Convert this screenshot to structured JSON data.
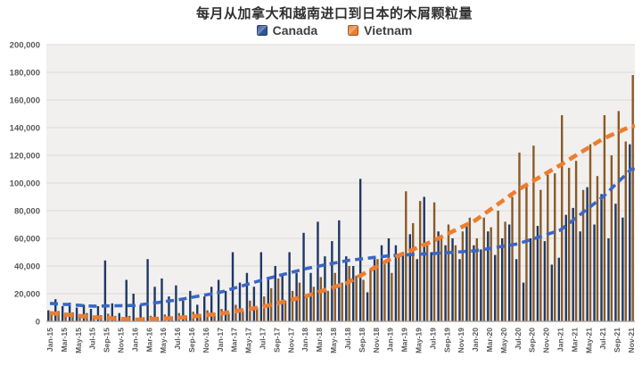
{
  "chart_data": {
    "type": "bar",
    "title": "每月从加拿大和越南进口到日本的木屑颗粒量",
    "xlabel": "",
    "ylabel": "",
    "ylim": [
      0,
      200000
    ],
    "y_ticks": [
      0,
      20000,
      40000,
      60000,
      80000,
      100000,
      120000,
      140000,
      160000,
      180000,
      200000
    ],
    "y_tick_labels": [
      "0",
      "20,000",
      "40,000",
      "60,000",
      "80,000",
      "100,000",
      "120,000",
      "140,000",
      "160,000",
      "180,000",
      "200,000"
    ],
    "grid": true,
    "legend_position": "top",
    "x_tick_every": 2,
    "x_tick_labels": [
      "Jan-15",
      "Mar-15",
      "May-15",
      "Jul-15",
      "Sep-15",
      "Nov-15",
      "Jan-16",
      "Mar-16",
      "May-16",
      "Jul-16",
      "Sep-16",
      "Nov-16",
      "Jan-17",
      "Mar-17",
      "May-17",
      "Jul-17",
      "Sep-17",
      "Nov-17",
      "Jan-18",
      "Mar-18",
      "May-18",
      "Jul-18",
      "Sep-18",
      "Nov-18",
      "Jan-19",
      "Mar-19",
      "May-19",
      "Jul-19",
      "Sep-19",
      "Nov-19",
      "Jan-20",
      "Mar-20",
      "May-20",
      "Jul-20",
      "Sep-20",
      "Nov-20",
      "Jan-21",
      "Mar-21",
      "May-21",
      "Jul-21",
      "Sep-21",
      "Nov-21"
    ],
    "categories": [
      "Jan-15",
      "Feb-15",
      "Mar-15",
      "Apr-15",
      "May-15",
      "Jun-15",
      "Jul-15",
      "Aug-15",
      "Sep-15",
      "Oct-15",
      "Nov-15",
      "Dec-15",
      "Jan-16",
      "Feb-16",
      "Mar-16",
      "Apr-16",
      "May-16",
      "Jun-16",
      "Jul-16",
      "Aug-16",
      "Sep-16",
      "Oct-16",
      "Nov-16",
      "Dec-16",
      "Jan-17",
      "Feb-17",
      "Mar-17",
      "Apr-17",
      "May-17",
      "Jun-17",
      "Jul-17",
      "Aug-17",
      "Sep-17",
      "Oct-17",
      "Nov-17",
      "Dec-17",
      "Jan-18",
      "Feb-18",
      "Mar-18",
      "Apr-18",
      "May-18",
      "Jun-18",
      "Jul-18",
      "Aug-18",
      "Sep-18",
      "Oct-18",
      "Nov-18",
      "Dec-18",
      "Jan-19",
      "Feb-19",
      "Mar-19",
      "Apr-19",
      "May-19",
      "Jun-19",
      "Jul-19",
      "Aug-19",
      "Sep-19",
      "Oct-19",
      "Nov-19",
      "Dec-19",
      "Jan-20",
      "Feb-20",
      "Mar-20",
      "Apr-20",
      "May-20",
      "Jun-20",
      "Jul-20",
      "Aug-20",
      "Sep-20",
      "Oct-20",
      "Nov-20",
      "Dec-20",
      "Jan-21",
      "Feb-21",
      "Mar-21",
      "Apr-21",
      "May-21",
      "Jun-21",
      "Jul-21",
      "Aug-21",
      "Sep-21",
      "Oct-21",
      "Nov-21"
    ],
    "series": [
      {
        "name": "Canada",
        "bar_color": "#1f3864",
        "marker_color": "#2f5597",
        "values": [
          8000,
          16000,
          11000,
          13500,
          10000,
          12000,
          9000,
          11000,
          44000,
          13000,
          6000,
          30000,
          20000,
          12000,
          45000,
          25000,
          31000,
          18000,
          26000,
          15000,
          22000,
          12000,
          18000,
          25000,
          30000,
          22000,
          50000,
          28000,
          35000,
          25000,
          50000,
          30000,
          40000,
          33000,
          50000,
          35000,
          64000,
          35000,
          72000,
          47000,
          58000,
          73000,
          47000,
          40000,
          103000,
          21000,
          45000,
          55000,
          60000,
          55000,
          50000,
          63000,
          45000,
          90000,
          50000,
          65000,
          55000,
          60000,
          45000,
          70000,
          55000,
          52000,
          65000,
          48000,
          60000,
          70000,
          45000,
          28000,
          60000,
          69000,
          58000,
          41000,
          46000,
          77000,
          82000,
          65000,
          97000,
          70000,
          92000,
          60000,
          85000,
          75000,
          128000
        ]
      },
      {
        "name": "Vietnam",
        "bar_color": "#8a5a28",
        "marker_color": "#ed7d31",
        "values": [
          6000,
          7500,
          5000,
          6500,
          4000,
          6000,
          3000,
          4500,
          5500,
          4000,
          3000,
          4000,
          2000,
          3000,
          4000,
          3000,
          5000,
          3500,
          6000,
          4000,
          7000,
          5000,
          8000,
          6000,
          9000,
          6000,
          12000,
          8000,
          15000,
          10000,
          18000,
          24000,
          31000,
          15000,
          22000,
          28000,
          18000,
          25000,
          32000,
          22000,
          35000,
          28000,
          40000,
          33000,
          30000,
          38000,
          45000,
          42000,
          35000,
          48000,
          94000,
          71000,
          87000,
          55000,
          86000,
          60000,
          70000,
          55000,
          65000,
          75000,
          60000,
          75000,
          68000,
          80000,
          72000,
          90000,
          122000,
          99000,
          127000,
          95000,
          106000,
          107000,
          149000,
          111000,
          116000,
          95000,
          128000,
          105000,
          149000,
          120000,
          152000,
          130000,
          178000
        ]
      }
    ],
    "trendlines": [
      {
        "name": "Canada polynomial trend",
        "color": "#3b66c4",
        "width": 3.6,
        "dash": "9 5.5",
        "points": [
          [
            0,
            13000
          ],
          [
            6,
            11000
          ],
          [
            12,
            11500
          ],
          [
            18,
            15500
          ],
          [
            24,
            21000
          ],
          [
            30,
            30000
          ],
          [
            36,
            38000
          ],
          [
            42,
            44000
          ],
          [
            48,
            47500
          ],
          [
            54,
            49000
          ],
          [
            60,
            51000
          ],
          [
            66,
            56000
          ],
          [
            72,
            66000
          ],
          [
            78,
            90000
          ],
          [
            82,
            110000
          ]
        ]
      },
      {
        "name": "Vietnam polynomial trend",
        "color": "#ed7d31",
        "width": 4.6,
        "dash": "10 6",
        "points": [
          [
            0,
            6000
          ],
          [
            6,
            3000
          ],
          [
            12,
            1200
          ],
          [
            18,
            2500
          ],
          [
            24,
            5500
          ],
          [
            30,
            10500
          ],
          [
            36,
            18000
          ],
          [
            42,
            28000
          ],
          [
            48,
            45000
          ],
          [
            54,
            58000
          ],
          [
            60,
            73000
          ],
          [
            66,
            95000
          ],
          [
            72,
            113000
          ],
          [
            78,
            132000
          ],
          [
            82,
            141000
          ]
        ]
      }
    ],
    "style": {
      "plot_bg": "#f1f0ee",
      "grid_color": "#dcdad6",
      "axis_line_color": "#9e9c99",
      "tick_label_color": "#595959",
      "title_color": "#303030"
    }
  }
}
